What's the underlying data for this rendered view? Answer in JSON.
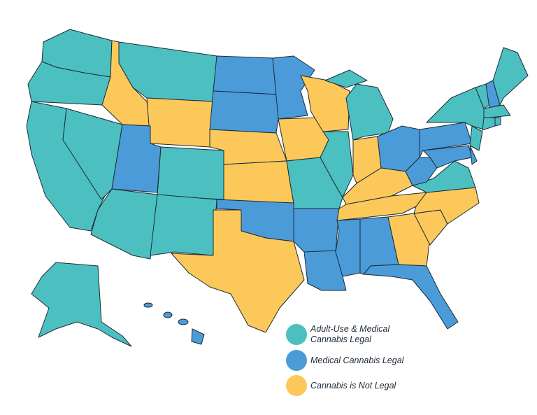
{
  "legend": {
    "items": [
      {
        "label": "Adult-Use & Medical Cannabis Legal",
        "color": "#4cc0c0"
      },
      {
        "label": "Medical Cannabis Legal",
        "color": "#4b9bd8"
      },
      {
        "label": "Cannabis is Not Legal",
        "color": "#fdc85a"
      }
    ]
  }
}
